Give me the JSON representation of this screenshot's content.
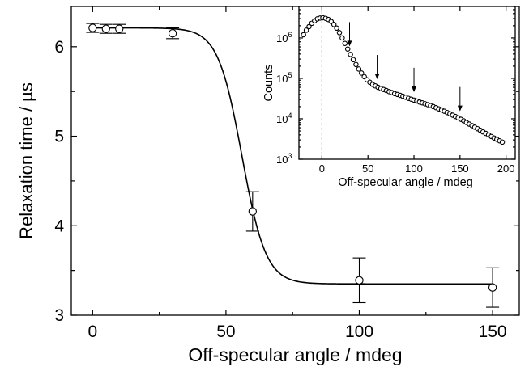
{
  "chart_data": [
    {
      "type": "line",
      "title": "",
      "xlabel": "Off-specular angle / mdeg",
      "ylabel": "Relaxation time / µs",
      "xlim": [
        -8,
        160
      ],
      "ylim": [
        3.0,
        6.45
      ],
      "x_ticks": [
        0,
        50,
        100,
        150
      ],
      "y_ticks": [
        3,
        4,
        5,
        6
      ],
      "x_tick_labels": [
        "0",
        "50",
        "100",
        "150"
      ],
      "y_tick_labels": [
        "3",
        "4",
        "5",
        "6"
      ],
      "grid": false,
      "legend": "none",
      "series": [
        {
          "kind": "scatter-errorbars",
          "marker": "open-circle",
          "points": [
            {
              "x": 0,
              "y": 6.21,
              "err": 0.05
            },
            {
              "x": 5,
              "y": 6.2,
              "err": 0.05
            },
            {
              "x": 10,
              "y": 6.2,
              "err": 0.05
            },
            {
              "x": 30,
              "y": 6.15,
              "err": 0.06
            },
            {
              "x": 60,
              "y": 4.16,
              "err": 0.22
            },
            {
              "x": 100,
              "y": 3.39,
              "err": 0.25
            },
            {
              "x": 150,
              "y": 3.31,
              "err": 0.22
            }
          ]
        },
        {
          "kind": "fit-curve",
          "description_shape": "sigmoid",
          "top": 6.21,
          "bottom": 3.35,
          "midpoint": 56,
          "width": 4.5,
          "x_range": [
            0,
            150
          ]
        }
      ]
    },
    {
      "type": "scatter",
      "title": "",
      "xlabel": "Off-specular angle / mdeg",
      "ylabel": "Counts",
      "xlim": [
        -25,
        210
      ],
      "ylim": [
        1000,
        6000000
      ],
      "yscale": "log",
      "x_ticks": [
        0,
        50,
        100,
        150,
        200
      ],
      "x_tick_labels": [
        "0",
        "50",
        "100",
        "150",
        "200"
      ],
      "y_ticks": [
        1000,
        10000,
        100000,
        1000000
      ],
      "y_tick_labels": [
        {
          "base": "10",
          "exp": "3"
        },
        {
          "base": "10",
          "exp": "4"
        },
        {
          "base": "10",
          "exp": "5"
        },
        {
          "base": "10",
          "exp": "6"
        }
      ],
      "marker": "open-circle",
      "vertical_dashed_line_x": 0,
      "arrows_at_x": [
        30,
        60,
        100,
        150
      ],
      "points": [
        {
          "x": -20,
          "y": 1200000
        },
        {
          "x": -17,
          "y": 1550000
        },
        {
          "x": -14,
          "y": 1900000
        },
        {
          "x": -11,
          "y": 2300000
        },
        {
          "x": -8,
          "y": 2650000
        },
        {
          "x": -5,
          "y": 2950000
        },
        {
          "x": -2,
          "y": 3100000
        },
        {
          "x": 1,
          "y": 3150000
        },
        {
          "x": 4,
          "y": 3050000
        },
        {
          "x": 7,
          "y": 2850000
        },
        {
          "x": 10,
          "y": 2550000
        },
        {
          "x": 13,
          "y": 2150000
        },
        {
          "x": 16,
          "y": 1750000
        },
        {
          "x": 19,
          "y": 1350000
        },
        {
          "x": 22,
          "y": 1000000
        },
        {
          "x": 25,
          "y": 730000
        },
        {
          "x": 28,
          "y": 530000
        },
        {
          "x": 31,
          "y": 390000
        },
        {
          "x": 34,
          "y": 290000
        },
        {
          "x": 37,
          "y": 220000
        },
        {
          "x": 40,
          "y": 170000
        },
        {
          "x": 43,
          "y": 135000
        },
        {
          "x": 46,
          "y": 110000
        },
        {
          "x": 49,
          "y": 92000
        },
        {
          "x": 52,
          "y": 80000
        },
        {
          "x": 55,
          "y": 71000
        },
        {
          "x": 58,
          "y": 65000
        },
        {
          "x": 61,
          "y": 60000
        },
        {
          "x": 64,
          "y": 56000
        },
        {
          "x": 67,
          "y": 53000
        },
        {
          "x": 70,
          "y": 50000
        },
        {
          "x": 73,
          "y": 47000
        },
        {
          "x": 76,
          "y": 44500
        },
        {
          "x": 79,
          "y": 42000
        },
        {
          "x": 82,
          "y": 40000
        },
        {
          "x": 85,
          "y": 38000
        },
        {
          "x": 88,
          "y": 36000
        },
        {
          "x": 91,
          "y": 34000
        },
        {
          "x": 94,
          "y": 32000
        },
        {
          "x": 97,
          "y": 30500
        },
        {
          "x": 100,
          "y": 29000
        },
        {
          "x": 103,
          "y": 27500
        },
        {
          "x": 106,
          "y": 26000
        },
        {
          "x": 109,
          "y": 24800
        },
        {
          "x": 112,
          "y": 23600
        },
        {
          "x": 115,
          "y": 22400
        },
        {
          "x": 118,
          "y": 21200
        },
        {
          "x": 121,
          "y": 20000
        },
        {
          "x": 124,
          "y": 18800
        },
        {
          "x": 127,
          "y": 17600
        },
        {
          "x": 130,
          "y": 16500
        },
        {
          "x": 133,
          "y": 15400
        },
        {
          "x": 136,
          "y": 14300
        },
        {
          "x": 139,
          "y": 13300
        },
        {
          "x": 142,
          "y": 12300
        },
        {
          "x": 145,
          "y": 11400
        },
        {
          "x": 148,
          "y": 10500
        },
        {
          "x": 151,
          "y": 9700
        },
        {
          "x": 154,
          "y": 8900
        },
        {
          "x": 157,
          "y": 8100
        },
        {
          "x": 160,
          "y": 7400
        },
        {
          "x": 163,
          "y": 6800
        },
        {
          "x": 166,
          "y": 6200
        },
        {
          "x": 169,
          "y": 5700
        },
        {
          "x": 172,
          "y": 5200
        },
        {
          "x": 175,
          "y": 4750
        },
        {
          "x": 178,
          "y": 4350
        },
        {
          "x": 181,
          "y": 4000
        },
        {
          "x": 184,
          "y": 3650
        },
        {
          "x": 187,
          "y": 3350
        },
        {
          "x": 190,
          "y": 3100
        },
        {
          "x": 193,
          "y": 2850
        },
        {
          "x": 196,
          "y": 2650
        }
      ]
    }
  ]
}
